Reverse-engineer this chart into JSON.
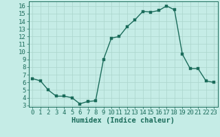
{
  "x": [
    0,
    1,
    2,
    3,
    4,
    5,
    6,
    7,
    8,
    9,
    10,
    11,
    12,
    13,
    14,
    15,
    16,
    17,
    18,
    19,
    20,
    21,
    22,
    23
  ],
  "y": [
    6.5,
    6.2,
    5.0,
    4.2,
    4.2,
    4.0,
    3.2,
    3.5,
    3.6,
    9.0,
    11.8,
    12.0,
    13.3,
    14.2,
    15.3,
    15.2,
    15.4,
    16.0,
    15.5,
    9.7,
    7.8,
    7.8,
    6.2,
    6.0
  ],
  "line_color": "#1a6b5a",
  "marker_color": "#1a6b5a",
  "bg_color": "#c5ece6",
  "grid_color": "#aad4cc",
  "xlabel": "Humidex (Indice chaleur)",
  "xlim": [
    -0.5,
    23.5
  ],
  "ylim": [
    2.8,
    16.6
  ],
  "yticks": [
    3,
    4,
    5,
    6,
    7,
    8,
    9,
    10,
    11,
    12,
    13,
    14,
    15,
    16
  ],
  "xticks": [
    0,
    1,
    2,
    3,
    4,
    5,
    6,
    7,
    8,
    9,
    10,
    11,
    12,
    13,
    14,
    15,
    16,
    17,
    18,
    19,
    20,
    21,
    22,
    23
  ],
  "xlabel_fontsize": 7.5,
  "tick_fontsize": 6.5,
  "line_width": 1.0,
  "marker_size": 2.5
}
